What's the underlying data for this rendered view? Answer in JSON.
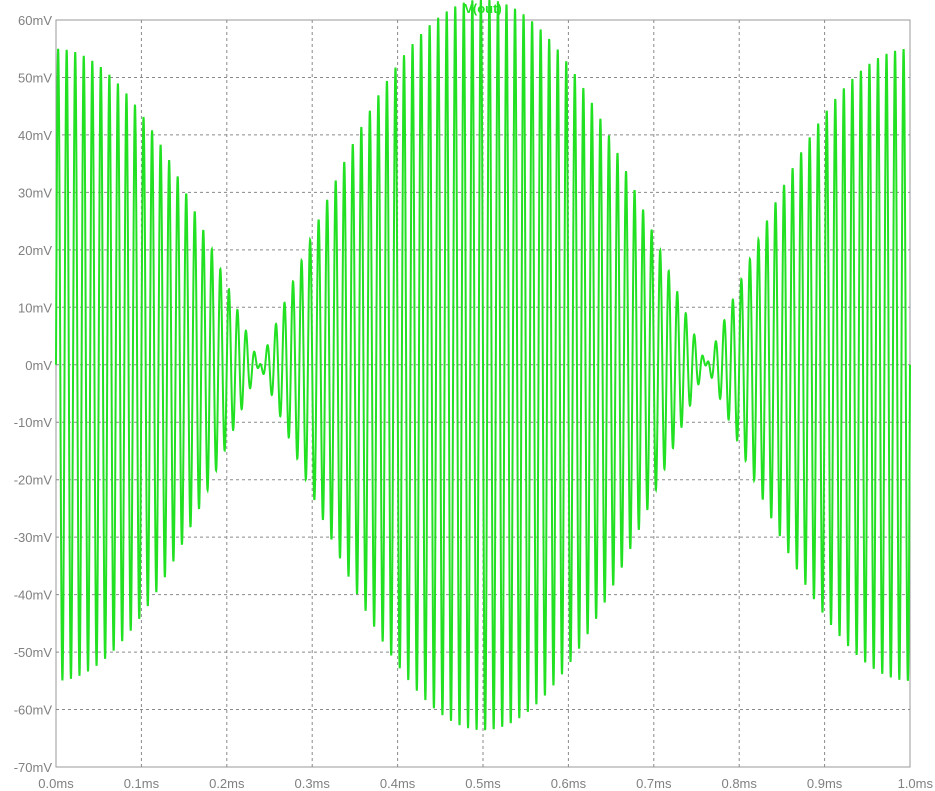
{
  "chart_data": {
    "type": "line",
    "title": "V(out)",
    "xlabel": "",
    "ylabel": "",
    "xlim": [
      0.0,
      1.0
    ],
    "ylim": [
      -70,
      60
    ],
    "x_tick_labels": [
      "0.0ms",
      "0.1ms",
      "0.2ms",
      "0.3ms",
      "0.4ms",
      "0.5ms",
      "0.6ms",
      "0.7ms",
      "0.8ms",
      "0.9ms",
      "1.0ms"
    ],
    "x_tick_values": [
      0.0,
      0.1,
      0.2,
      0.3,
      0.4,
      0.5,
      0.6,
      0.7,
      0.8,
      0.9,
      1.0
    ],
    "y_tick_labels": [
      "60mV",
      "50mV",
      "40mV",
      "30mV",
      "20mV",
      "10mV",
      "0mV",
      "-10mV",
      "-20mV",
      "-30mV",
      "-40mV",
      "-50mV",
      "-60mV",
      "-70mV"
    ],
    "y_tick_values": [
      60,
      50,
      40,
      30,
      20,
      10,
      0,
      -10,
      -20,
      -30,
      -40,
      -50,
      -60,
      -70
    ],
    "grid": true,
    "series": [
      {
        "name": "V(out)",
        "color": "#22e022",
        "carrier_cycles": 100,
        "envelope_center_mV": -4.3,
        "envelope_amplitude_mV": 59.3,
        "x_unit": "ms",
        "y_unit": "mV"
      }
    ]
  }
}
